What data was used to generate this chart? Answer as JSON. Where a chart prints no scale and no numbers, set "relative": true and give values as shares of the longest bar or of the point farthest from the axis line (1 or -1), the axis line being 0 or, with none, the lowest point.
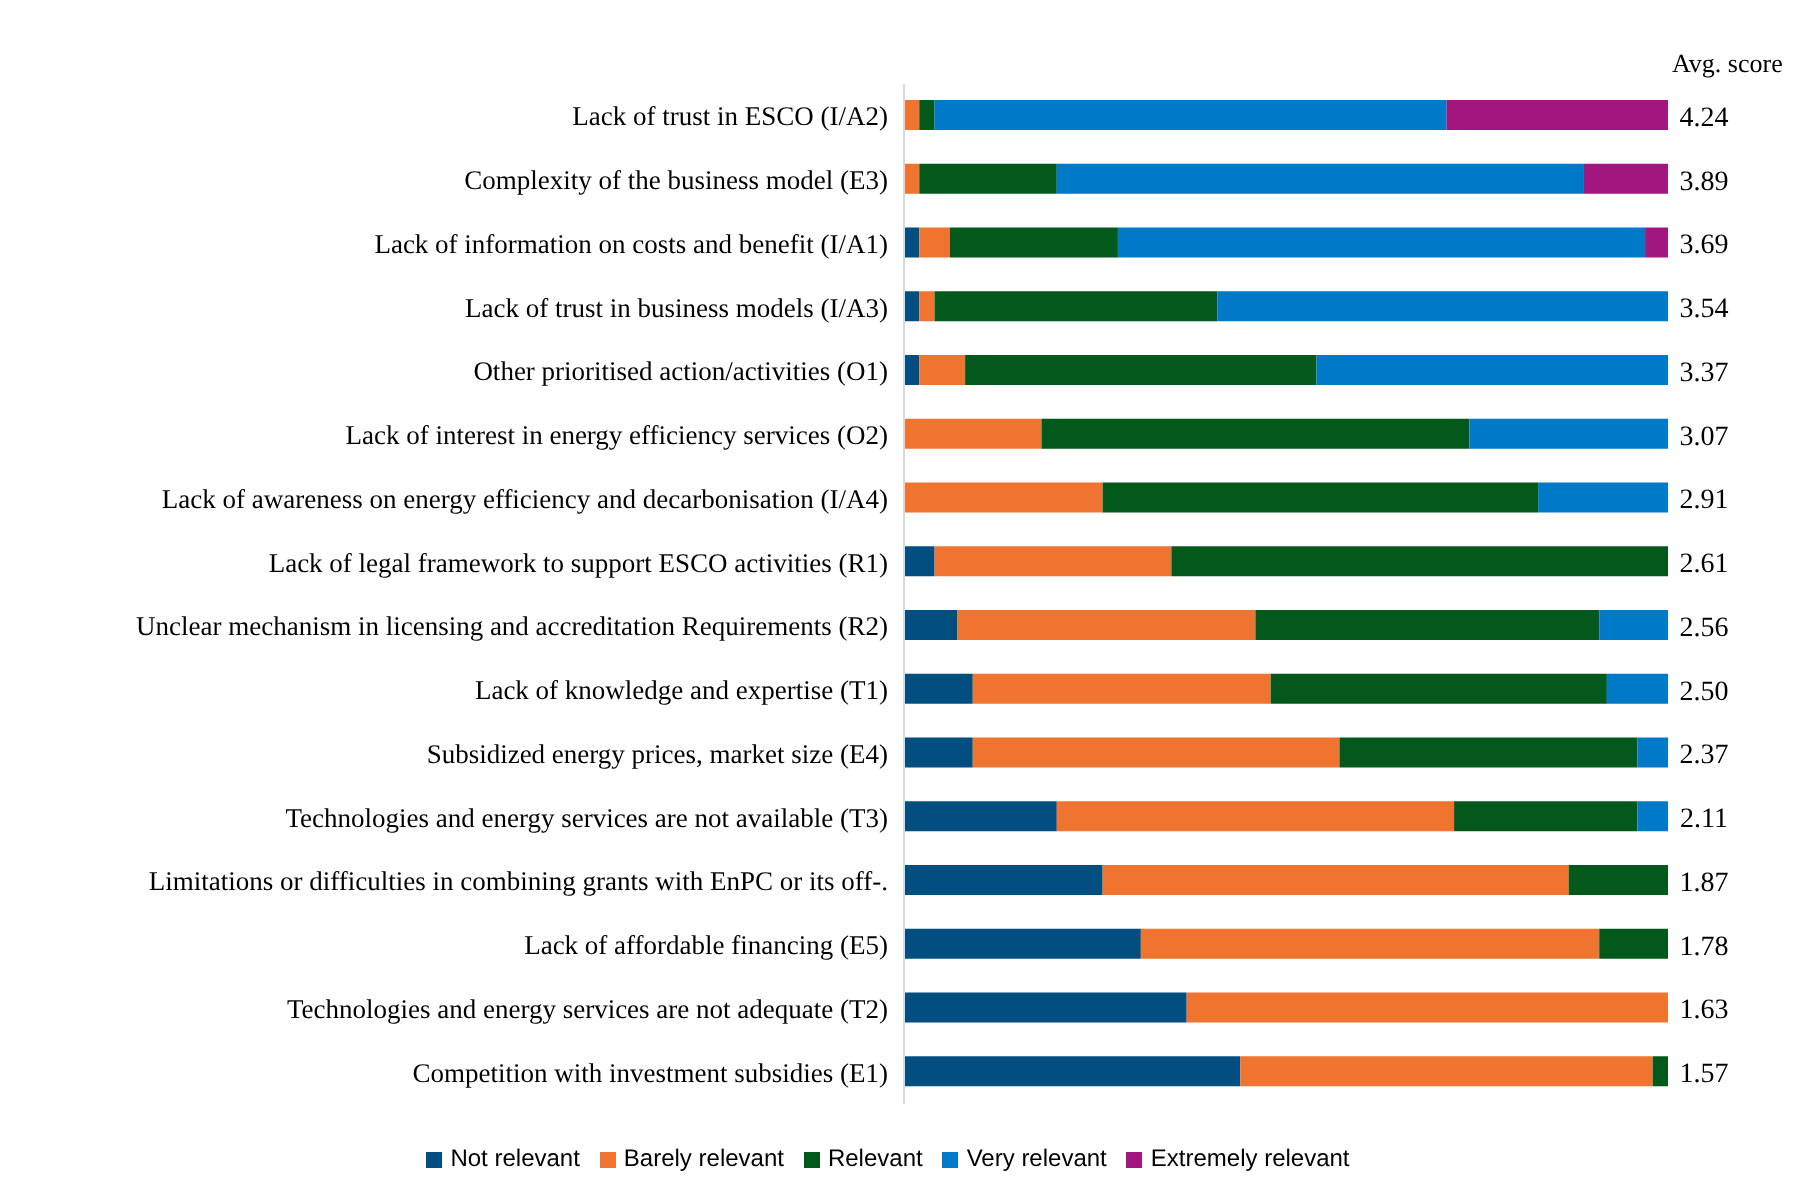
{
  "chart_data": {
    "type": "bar",
    "orientation": "horizontal",
    "stacked": true,
    "relative": true,
    "legend": "bottom",
    "categories": [
      "Lack of trust in ESCO (I/A2)",
      "Complexity of the business model (E3)",
      "Lack of information on costs and benefit (I/A1)",
      "Lack of trust in business models (I/A3)",
      "Other prioritised action/activities (O1)",
      "Lack of interest in energy efficiency services (O2)",
      "Lack of awareness on energy efficiency and decarbonisation (I/A4)",
      "Lack of legal framework to support ESCO activities (R1)",
      "Unclear mechanism in licensing and accreditation Requirements (R2)",
      "Lack of knowledge and expertise (T1)",
      "Subsidized energy prices, market size (E4)",
      "Technologies and energy services are not available (T3)",
      "Limitations or difficulties in combining grants with EnPC or its off-.",
      "Lack of affordable financing (E5)",
      "Technologies and energy services are not adequate (T2)",
      "Competition with investment subsidies (E1)"
    ],
    "series": [
      {
        "name": "Not relevant",
        "color": "#004f80",
        "values": [
          0,
          0,
          0.02,
          0.02,
          0.02,
          0,
          0,
          0.04,
          0.07,
          0.09,
          0.09,
          0.2,
          0.26,
          0.31,
          0.37,
          0.44
        ]
      },
      {
        "name": "Barely relevant",
        "color": "#ee7430",
        "values": [
          0.02,
          0.02,
          0.04,
          0.02,
          0.06,
          0.18,
          0.26,
          0.31,
          0.39,
          0.39,
          0.48,
          0.52,
          0.61,
          0.6,
          0.63,
          0.54
        ]
      },
      {
        "name": "Relevant",
        "color": "#03591b",
        "values": [
          0.02,
          0.18,
          0.22,
          0.37,
          0.46,
          0.56,
          0.57,
          0.65,
          0.45,
          0.44,
          0.39,
          0.24,
          0.13,
          0.09,
          0,
          0.02
        ]
      },
      {
        "name": "Very relevant",
        "color": "#0079c8",
        "values": [
          0.67,
          0.69,
          0.69,
          0.59,
          0.46,
          0.26,
          0.17,
          0,
          0.09,
          0.08,
          0.04,
          0.04,
          0,
          0,
          0,
          0
        ]
      },
      {
        "name": "Extremely relevant",
        "color": "#a2177f",
        "values": [
          0.29,
          0.11,
          0.03,
          0,
          0,
          0,
          0,
          0,
          0,
          0,
          0,
          0,
          0,
          0,
          0,
          0
        ]
      }
    ],
    "annotations": [
      "Avg. score",
      "4.24",
      "3.89",
      "3.69",
      "3.54",
      "3.37",
      "3.07",
      "2.91",
      "2.61",
      "2.56",
      "2.50",
      "2.37",
      "2.11",
      "1.87",
      "1.78",
      "1.63",
      "1.57"
    ]
  }
}
